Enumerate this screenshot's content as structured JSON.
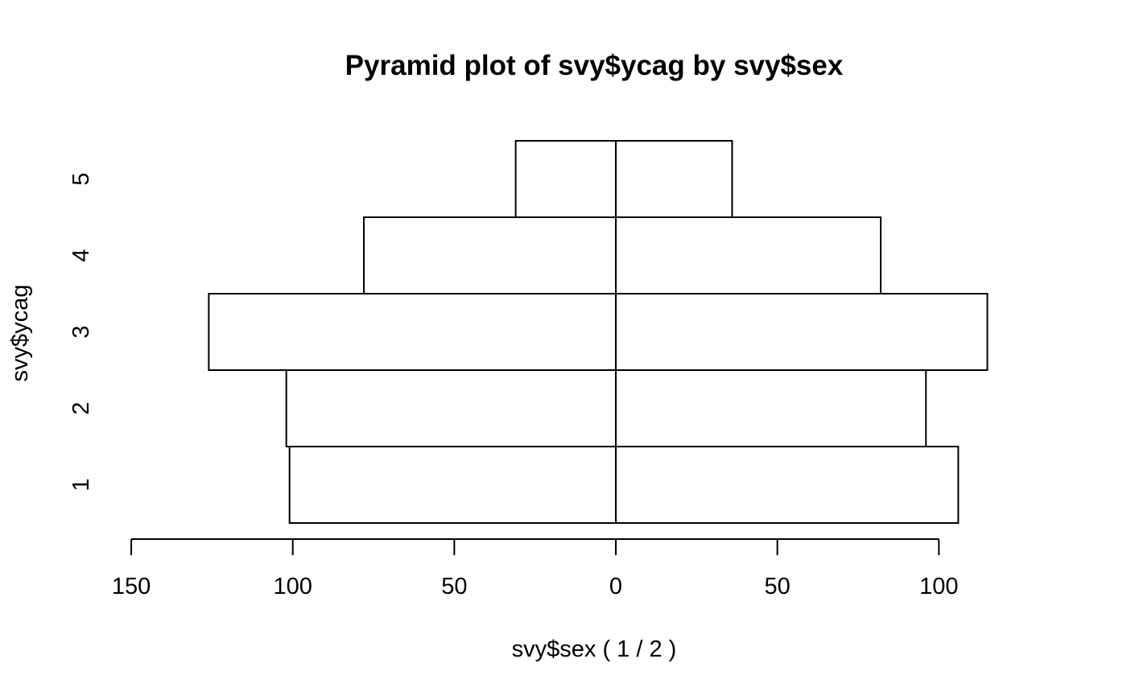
{
  "chart_data": {
    "type": "bar",
    "orientation": "horizontal-pyramid",
    "title": "Pyramid plot of svy$ycag by svy$sex",
    "xlabel": "svy$sex ( 1 / 2 )",
    "ylabel": "svy$ycag",
    "categories": [
      "1",
      "2",
      "3",
      "4",
      "5"
    ],
    "series": [
      {
        "name": "1",
        "side": "left",
        "values": [
          101,
          102,
          126,
          78,
          31
        ]
      },
      {
        "name": "2",
        "side": "right",
        "values": [
          106,
          96,
          115,
          82,
          36
        ]
      }
    ],
    "xticks_left": [
      "150",
      "100",
      "50",
      "0"
    ],
    "xticks_right": [
      "50",
      "100"
    ],
    "xtick_values_left": [
      150,
      100,
      50,
      0
    ],
    "xtick_values_right": [
      50,
      100
    ],
    "xlim": [
      -150,
      100
    ],
    "grid": false,
    "legend": "none",
    "bar_color": "#ffffff",
    "line_color": "#000000"
  }
}
